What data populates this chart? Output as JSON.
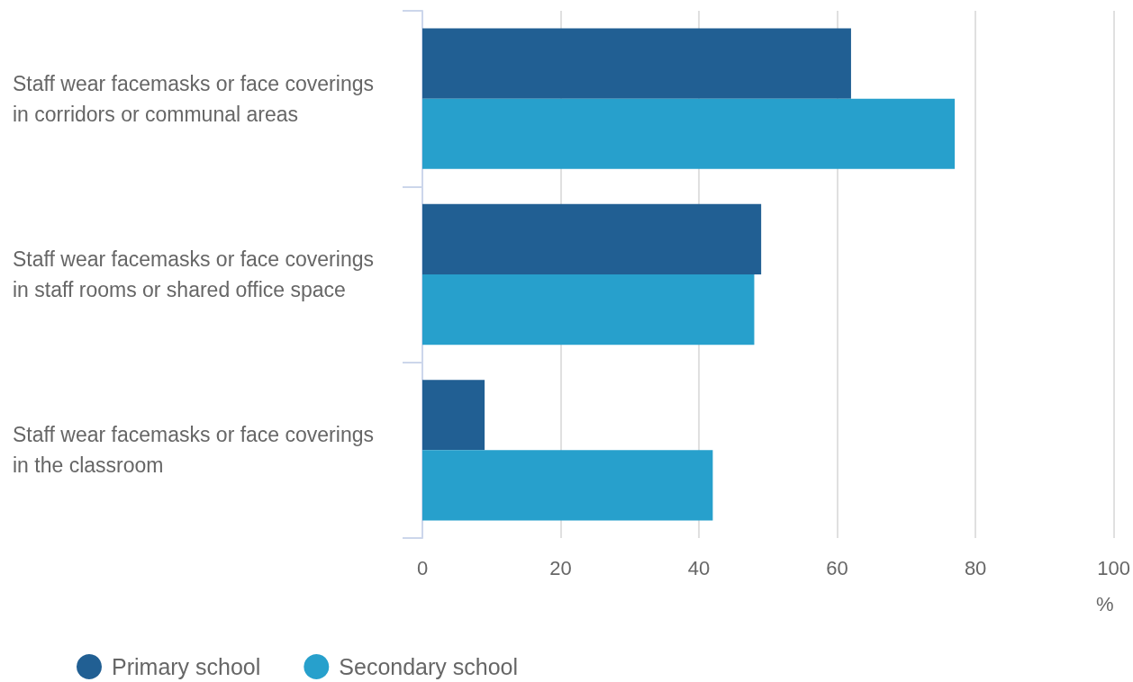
{
  "chart_data": {
    "type": "bar",
    "orientation": "horizontal",
    "categories": [
      "Staff wear facemasks or face coverings in corridors or communal areas",
      "Staff wear facemasks or face coverings in staff rooms or shared office space",
      "Staff wear facemasks or face coverings in the classroom"
    ],
    "series": [
      {
        "name": "Primary school",
        "color": "#215f93",
        "values": [
          62,
          49,
          9
        ]
      },
      {
        "name": "Secondary school",
        "color": "#27a0cc",
        "values": [
          77,
          48,
          42
        ]
      }
    ],
    "xlabel": "%",
    "xlim": [
      0,
      100
    ],
    "xticks": [
      0,
      20,
      40,
      60,
      80,
      100
    ],
    "grid": "x",
    "legend": "bottom left"
  }
}
